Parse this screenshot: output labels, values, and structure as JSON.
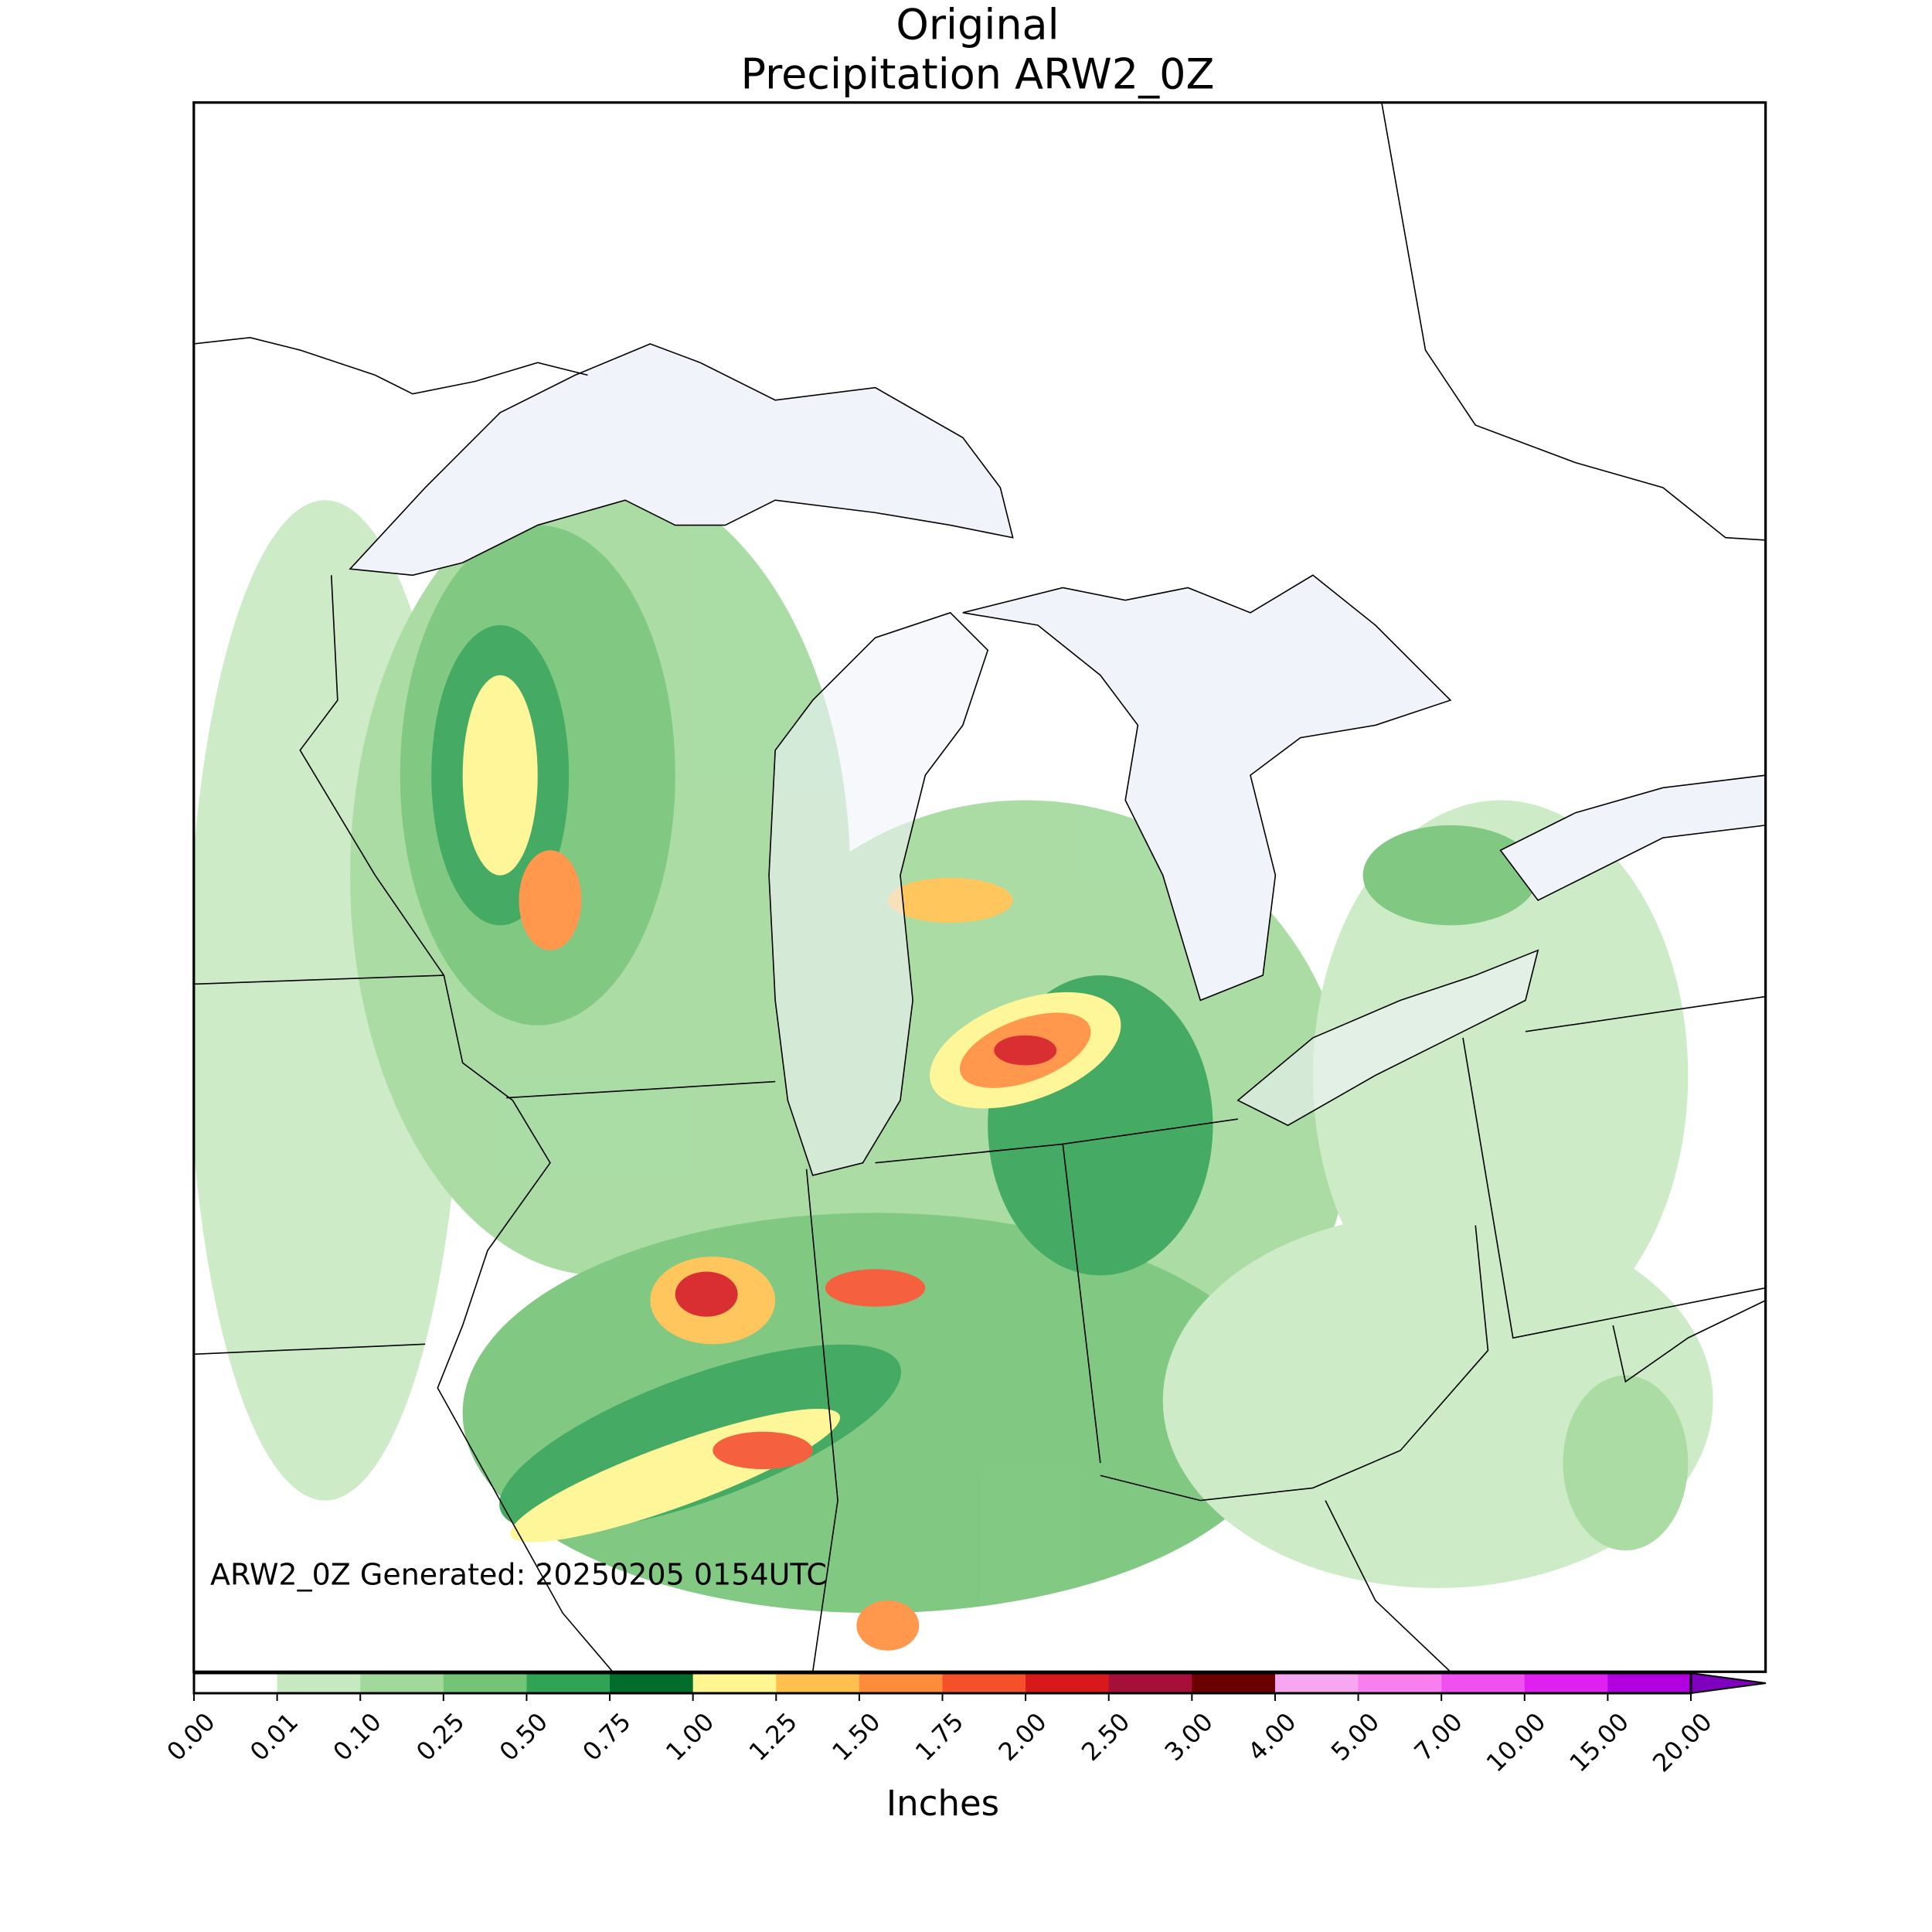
{
  "title": [
    "Original",
    "Precipitation ARW2_0Z"
  ],
  "annotation": "ARW2_0Z Generated: 20250205 0154UTC",
  "colorbar": {
    "label": "Inches",
    "ticks": [
      {
        "value": 0,
        "label": "0.00"
      },
      {
        "value": 0.01,
        "label": "0.01"
      },
      {
        "value": 0.1,
        "label": "0.10"
      },
      {
        "value": 0.25,
        "label": "0.25"
      },
      {
        "value": 0.5,
        "label": "0.50"
      },
      {
        "value": 0.75,
        "label": "0.75"
      },
      {
        "value": 1,
        "label": "1.00"
      },
      {
        "value": 1.25,
        "label": "1.25"
      },
      {
        "value": 1.5,
        "label": "1.50"
      },
      {
        "value": 1.75,
        "label": "1.75"
      },
      {
        "value": 2,
        "label": "2.00"
      },
      {
        "value": 2.5,
        "label": "2.50"
      },
      {
        "value": 3,
        "label": "3.00"
      },
      {
        "value": 4,
        "label": "4.00"
      },
      {
        "value": 5,
        "label": "5.00"
      },
      {
        "value": 7,
        "label": "7.00"
      },
      {
        "value": 10,
        "label": "10.00"
      },
      {
        "value": 15,
        "label": "15.00"
      },
      {
        "value": 20,
        "label": "20.00"
      }
    ],
    "colors": [
      "#ffffff",
      "#c7e9c0",
      "#a1d99b",
      "#74c476",
      "#31a354",
      "#006d2c",
      "#fff68f",
      "#ffc04d",
      "#ff8c3a",
      "#f4502a",
      "#d7191c",
      "#a50f3a",
      "#6b0000",
      "#f7a6f0",
      "#f77ff0",
      "#f050f0",
      "#e020f0",
      "#b000e0"
    ],
    "extend_color": "#8000c0"
  }
}
